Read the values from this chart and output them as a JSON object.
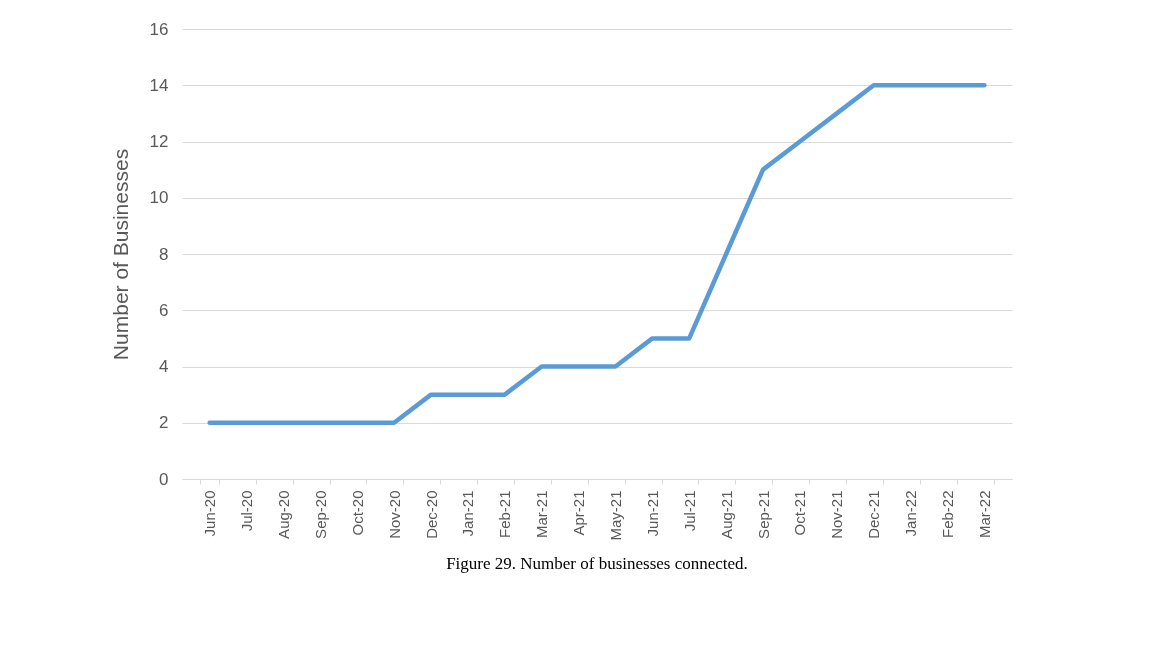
{
  "chart_data": {
    "type": "line",
    "ylabel": "Number of Businesses",
    "categories": [
      "Jun-20",
      "Jul-20",
      "Aug-20",
      "Sep-20",
      "Oct-20",
      "Nov-20",
      "Dec-20",
      "Jan-21",
      "Feb-21",
      "Mar-21",
      "Apr-21",
      "May-21",
      "Jun-21",
      "Jul-21",
      "Aug-21",
      "Sep-21",
      "Oct-21",
      "Nov-21",
      "Dec-21",
      "Jan-22",
      "Feb-22",
      "Mar-22"
    ],
    "series": [
      {
        "color": "#5b9bd5",
        "values": [
          2,
          2,
          2,
          2,
          2,
          2,
          3,
          3,
          3,
          4,
          4,
          4,
          5,
          5,
          8,
          11,
          12,
          13,
          14,
          14,
          14,
          14
        ]
      }
    ],
    "ylim": [
      0,
      16
    ],
    "yticks": [
      0,
      2,
      4,
      6,
      8,
      10,
      12,
      14,
      16
    ],
    "grid": "y",
    "marker": "none",
    "line_style": "solid",
    "annotations": [
      "Figure 29. Number of businesses connected."
    ]
  }
}
